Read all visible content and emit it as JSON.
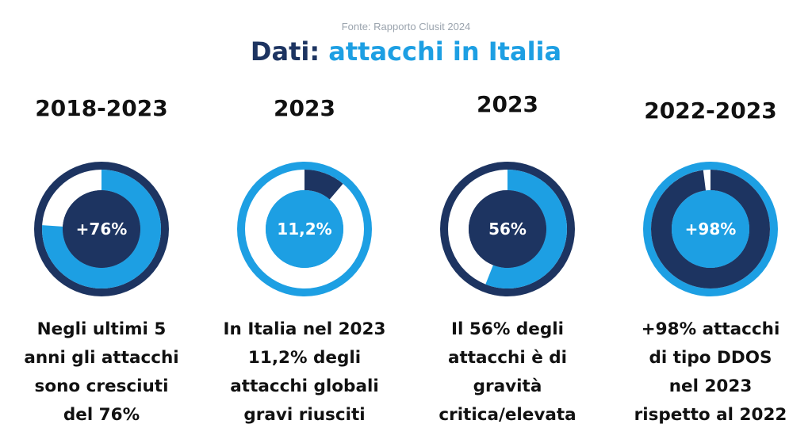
{
  "header": {
    "source": "Fonte: Rapporto Clusit 2024",
    "title_main": "Dati:",
    "title_accent": "attacchi in Italia"
  },
  "colors": {
    "navy": "#1d3461",
    "blue": "#1d9fe3",
    "white": "#ffffff"
  },
  "chart_data": [
    {
      "type": "pie",
      "title": "2018-2023",
      "center_label": "+76%",
      "value_percent": 76,
      "description": [
        "Negli ultimi 5",
        "anni gli attacchi",
        "sono cresciuti",
        "del 76%"
      ]
    },
    {
      "type": "pie",
      "title": "2023",
      "center_label": "11,2%",
      "value_percent": 11.2,
      "description": [
        "In Italia  nel 2023",
        "11,2% degli",
        "attacchi globali",
        "gravi riusciti"
      ]
    },
    {
      "type": "pie",
      "title": "2023",
      "center_label": "56%",
      "value_percent": 56,
      "description": [
        "Il 56% degli",
        "attacchi è di",
        "gravità",
        "critica/elevata"
      ]
    },
    {
      "type": "pie",
      "title": "2022-2023",
      "center_label": "+98%",
      "value_percent": 98,
      "description": [
        "+98%  attacchi",
        "di tipo DDOS",
        "nel 2023",
        "rispetto al 2022"
      ]
    }
  ]
}
